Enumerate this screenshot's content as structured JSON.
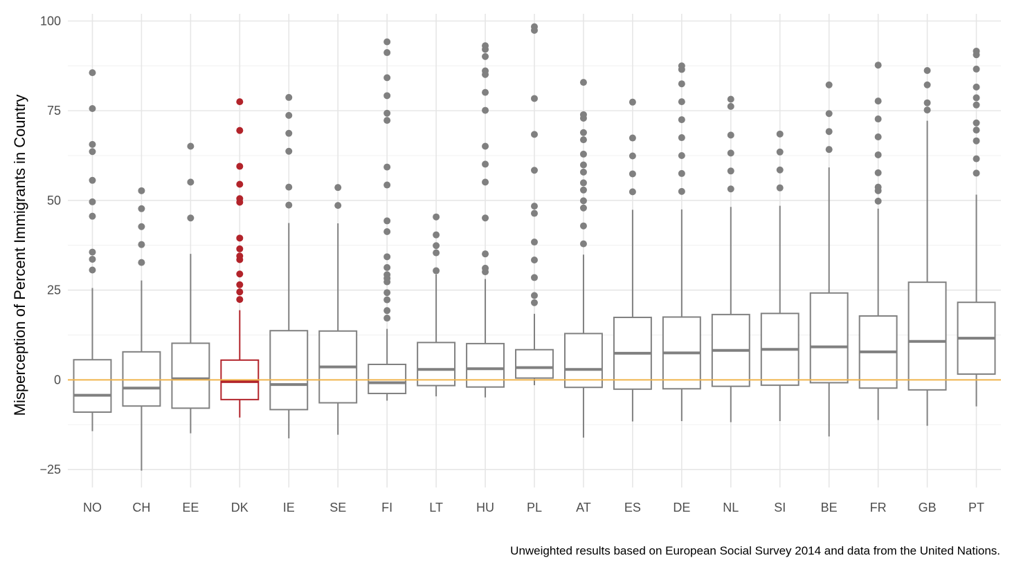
{
  "chart_data": {
    "type": "boxplot",
    "ylabel": "Misperception of Percent Immigrants in Country",
    "xlabel": "",
    "caption": "Unweighted results based on European Social Survey 2014 and data from the United Nations.",
    "ylim": [
      -30,
      102
    ],
    "yticks": [
      -25,
      0,
      25,
      50,
      75,
      100
    ],
    "ytick_labels": [
      "−25",
      "0",
      "25",
      "50",
      "75",
      "100"
    ],
    "reference_line": {
      "y": 0,
      "color": "#f0b44c"
    },
    "default_color": "#808080",
    "highlight_color": "#b2232a",
    "grid": true,
    "series": [
      {
        "name": "NO",
        "q1": -9,
        "median": -4.3,
        "q3": 5.6,
        "whisker_low": -14.3,
        "whisker_high": 25.6,
        "outliers": [
          30.6,
          33.6,
          35.6,
          45.6,
          49.6,
          55.6,
          63.6,
          65.6,
          75.6,
          85.6
        ]
      },
      {
        "name": "CH",
        "q1": -7.3,
        "median": -2.3,
        "q3": 7.8,
        "whisker_low": -25.3,
        "whisker_high": 27.7,
        "outliers": [
          32.7,
          37.7,
          42.7,
          47.7,
          52.7
        ]
      },
      {
        "name": "EE",
        "q1": -7.9,
        "median": 0.3,
        "q3": 10.2,
        "whisker_low": -14.9,
        "whisker_high": 35.1,
        "outliers": [
          45.1,
          55.1,
          65.1
        ]
      },
      {
        "name": "DK",
        "q1": -5.5,
        "median": -0.5,
        "q3": 5.5,
        "whisker_low": -10.5,
        "whisker_high": 19.4,
        "outliers": [
          22.4,
          24.5,
          26.5,
          29.5,
          33.5,
          34.5,
          36.5,
          39.5,
          49.5,
          50.5,
          54.5,
          59.5,
          69.5,
          77.5
        ],
        "highlight": true
      },
      {
        "name": "IE",
        "q1": -8.3,
        "median": -1.3,
        "q3": 13.7,
        "whisker_low": -16.3,
        "whisker_high": 43.7,
        "outliers": [
          48.7,
          53.7,
          63.7,
          68.7,
          73.7,
          78.7
        ]
      },
      {
        "name": "SE",
        "q1": -6.4,
        "median": 3.6,
        "q3": 13.6,
        "whisker_low": -15.3,
        "whisker_high": 43.6,
        "outliers": [
          48.6,
          53.6
        ]
      },
      {
        "name": "FI",
        "q1": -3.8,
        "median": -0.8,
        "q3": 4.3,
        "whisker_low": -5.8,
        "whisker_high": 14.2,
        "outliers": [
          17.2,
          19.3,
          22.3,
          24.3,
          27.3,
          28.3,
          29.3,
          31.3,
          34.3,
          41.3,
          44.3,
          54.3,
          59.3,
          72.3,
          74.3,
          79.2,
          84.2,
          91.2,
          94.2
        ]
      },
      {
        "name": "LT",
        "q1": -1.6,
        "median": 2.9,
        "q3": 10.4,
        "whisker_low": -4.6,
        "whisker_high": 29.4,
        "outliers": [
          30.4,
          35.4,
          37.4,
          40.4,
          45.4
        ]
      },
      {
        "name": "HU",
        "q1": -2,
        "median": 3.1,
        "q3": 10.1,
        "whisker_low": -4.9,
        "whisker_high": 28.1,
        "outliers": [
          30.1,
          31.1,
          35.1,
          45.1,
          55.1,
          60.1,
          65.1,
          75.1,
          80.1,
          85.1,
          86.1,
          90.1,
          92.1,
          93.1
        ]
      },
      {
        "name": "PL",
        "q1": 0.5,
        "median": 3.4,
        "q3": 8.4,
        "whisker_low": -1.5,
        "whisker_high": 18.4,
        "outliers": [
          21.5,
          23.5,
          28.5,
          33.4,
          38.4,
          46.4,
          48.4,
          58.4,
          68.4,
          78.4,
          97.4,
          98.4
        ]
      },
      {
        "name": "AT",
        "q1": -2.1,
        "median": 2.9,
        "q3": 12.9,
        "whisker_low": -16.1,
        "whisker_high": 34.9,
        "outliers": [
          37.9,
          42.9,
          47.9,
          49.9,
          52.9,
          54.9,
          57.9,
          59.9,
          62.9,
          66.9,
          68.9,
          72.9,
          73.9,
          82.9
        ]
      },
      {
        "name": "ES",
        "q1": -2.6,
        "median": 7.4,
        "q3": 17.4,
        "whisker_low": -11.6,
        "whisker_high": 47.4,
        "outliers": [
          52.4,
          57.4,
          62.4,
          67.4,
          77.4
        ]
      },
      {
        "name": "DE",
        "q1": -2.5,
        "median": 7.5,
        "q3": 17.5,
        "whisker_low": -11.5,
        "whisker_high": 47.5,
        "outliers": [
          52.5,
          57.5,
          62.5,
          67.5,
          72.5,
          77.5,
          82.5,
          86.5,
          87.5
        ]
      },
      {
        "name": "NL",
        "q1": -1.8,
        "median": 8.2,
        "q3": 18.2,
        "whisker_low": -11.8,
        "whisker_high": 48.2,
        "outliers": [
          53.2,
          58.2,
          63.2,
          68.2,
          76.2,
          78.2
        ]
      },
      {
        "name": "SI",
        "q1": -1.5,
        "median": 8.5,
        "q3": 18.5,
        "whisker_low": -11.5,
        "whisker_high": 48.5,
        "outliers": [
          53.5,
          58.5,
          63.5,
          68.5
        ]
      },
      {
        "name": "BE",
        "q1": -0.8,
        "median": 9.2,
        "q3": 24.2,
        "whisker_low": -15.8,
        "whisker_high": 59.2,
        "outliers": [
          64.2,
          69.2,
          74.2,
          82.2
        ]
      },
      {
        "name": "FR",
        "q1": -2.3,
        "median": 7.8,
        "q3": 17.8,
        "whisker_low": -11.2,
        "whisker_high": 47.7,
        "outliers": [
          49.8,
          52.7,
          53.7,
          57.7,
          62.7,
          67.7,
          72.7,
          77.7,
          87.7
        ]
      },
      {
        "name": "GB",
        "q1": -2.8,
        "median": 10.7,
        "q3": 27.2,
        "whisker_low": -12.8,
        "whisker_high": 72.2,
        "outliers": [
          75.2,
          77.2,
          82.2,
          86.2
        ]
      },
      {
        "name": "PT",
        "q1": 1.6,
        "median": 11.6,
        "q3": 21.6,
        "whisker_low": -7.4,
        "whisker_high": 51.6,
        "outliers": [
          57.6,
          61.6,
          66.6,
          69.6,
          71.6,
          76.6,
          78.6,
          81.6,
          86.6,
          90.6,
          91.6
        ]
      }
    ]
  }
}
